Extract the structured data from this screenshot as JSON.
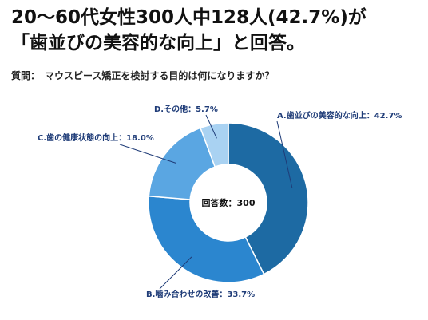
{
  "headline": {
    "line1": "20～60代女性300人中128人(42.7%)が",
    "line2": "「歯並びの美容的な向上」と回答。"
  },
  "question": "質問：　マウスピース矯正を検討する目的は何になりますか？",
  "chart_data": {
    "type": "pie",
    "donut": true,
    "center_label": "回答数：300",
    "slices": [
      {
        "label": "A.歯並びの美容的な向上：42.7%",
        "value": 42.7,
        "color": "#1d6aa3"
      },
      {
        "label": "B.噛み合わせの改善：33.7%",
        "value": 33.7,
        "color": "#2b86cf"
      },
      {
        "label": "C.歯の健康状態の向上：18.0%",
        "value": 18.0,
        "color": "#5aa6e2"
      },
      {
        "label": "D.その他：5.7%",
        "value": 5.7,
        "color": "#a9d2f2"
      }
    ]
  }
}
